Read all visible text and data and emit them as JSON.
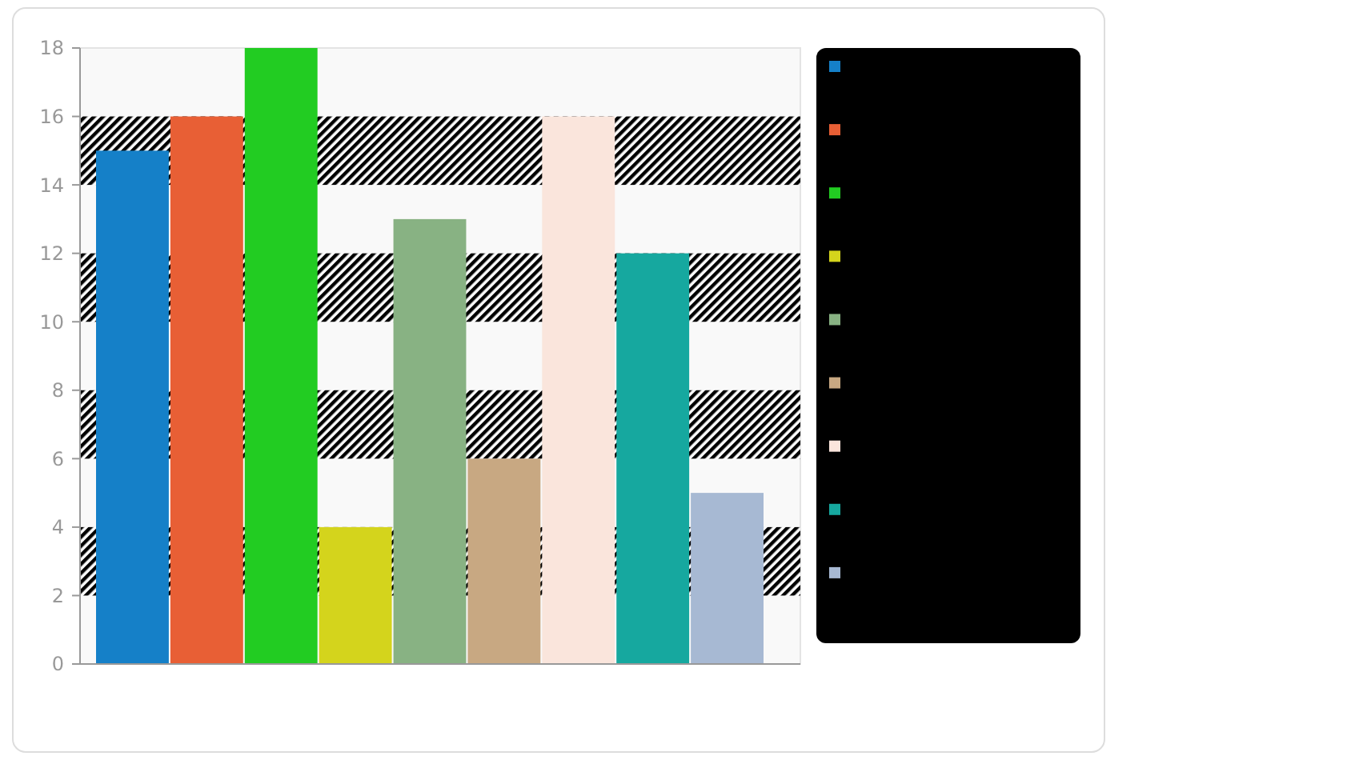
{
  "chart_data": {
    "type": "bar",
    "categories": [
      null,
      null,
      null,
      null,
      null,
      null,
      null,
      null,
      null
    ],
    "values": [
      15,
      16,
      18,
      4,
      13,
      6,
      16,
      12,
      5
    ],
    "colors": [
      "#1580c8",
      "#e85f35",
      "#22cc22",
      "#d4d41c",
      "#88b283",
      "#c8a882",
      "#fae5dc",
      "#16a89f",
      "#a7b9d3"
    ],
    "ylim": [
      0,
      18
    ],
    "yticks": [
      0,
      2,
      4,
      6,
      8,
      10,
      12,
      14,
      16,
      18
    ],
    "bands": [
      {
        "axis": "y",
        "from": 2,
        "to": 4,
        "color": "#000000"
      },
      {
        "axis": "y",
        "from": 6,
        "to": 8,
        "color": "#000000"
      },
      {
        "axis": "y",
        "from": 10,
        "to": 12,
        "color": "#000000"
      },
      {
        "axis": "y",
        "from": 14,
        "to": 16,
        "color": "#000000"
      }
    ]
  }
}
